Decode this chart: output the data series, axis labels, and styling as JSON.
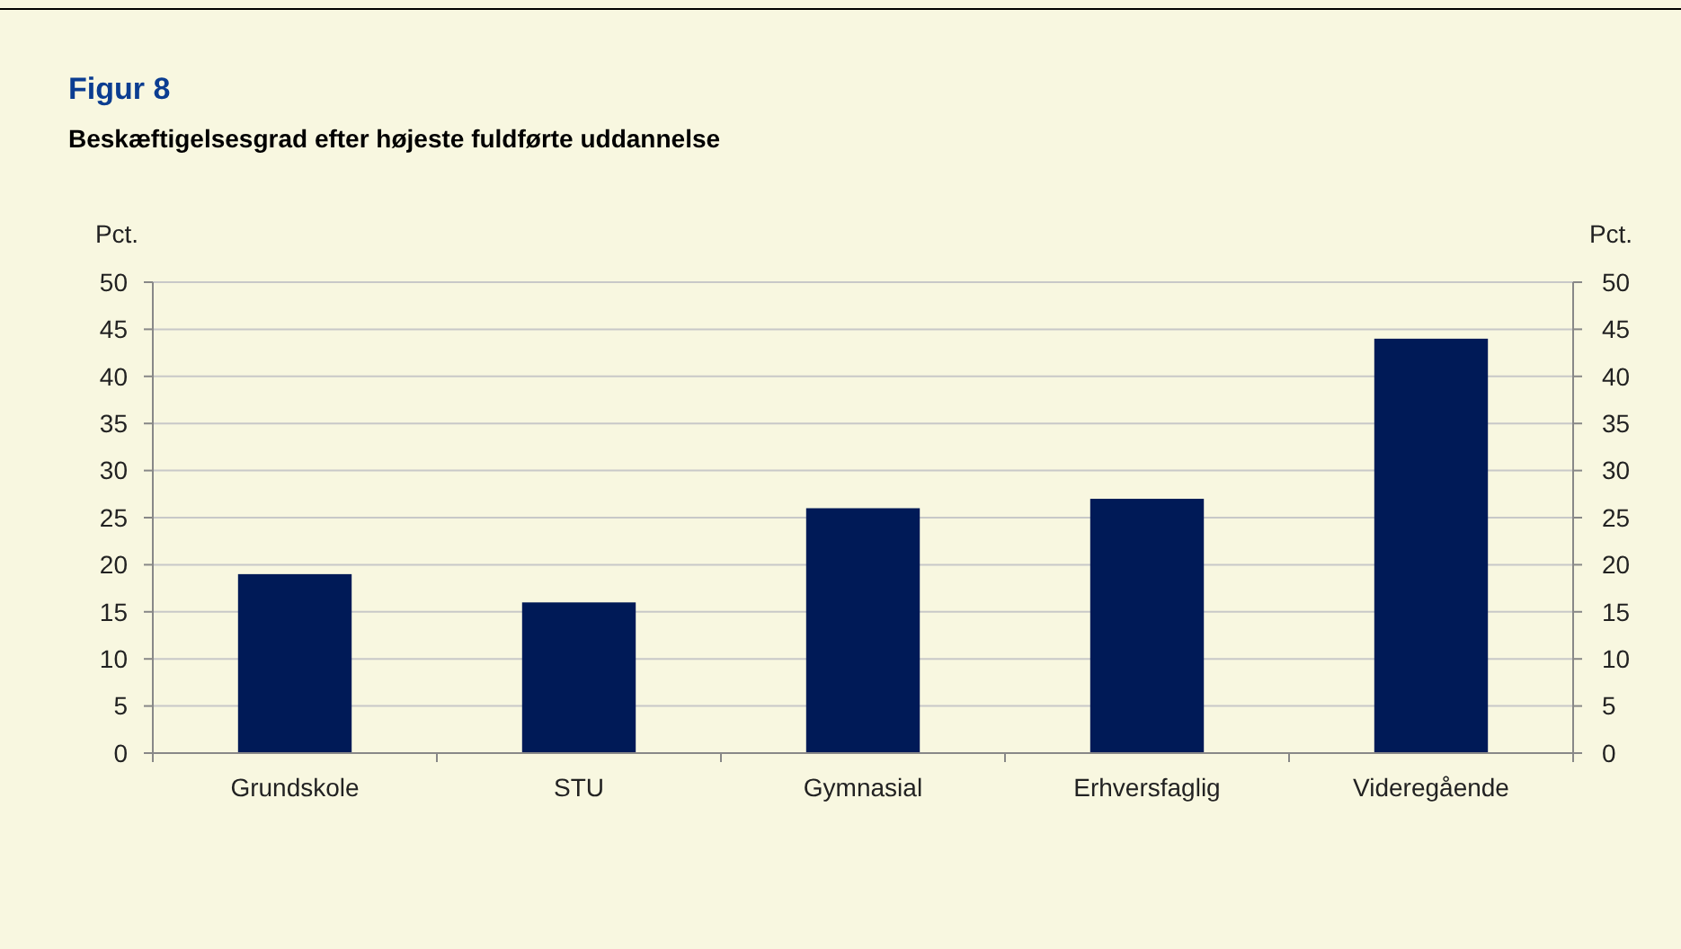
{
  "chart_data": {
    "type": "bar",
    "title": "Figur 8",
    "subtitle": "Beskæftigelsesgrad efter højeste fuldførte uddannelse",
    "ylabel": "Pct.",
    "y2label": "Pct.",
    "categories": [
      "Grundskole",
      "STU",
      "Gymnasial",
      "Erhversfaglig",
      "Videregående"
    ],
    "values": [
      19,
      16,
      26,
      27,
      44
    ],
    "color": "#001a57",
    "ylim": [
      0,
      50
    ],
    "yticks": [
      0,
      5,
      10,
      15,
      20,
      25,
      30,
      35,
      40,
      45,
      50
    ],
    "y2lim": [
      0,
      50
    ],
    "y2ticks": [
      0,
      5,
      10,
      15,
      20,
      25,
      30,
      35,
      40,
      45,
      50
    ],
    "grid": "y"
  }
}
